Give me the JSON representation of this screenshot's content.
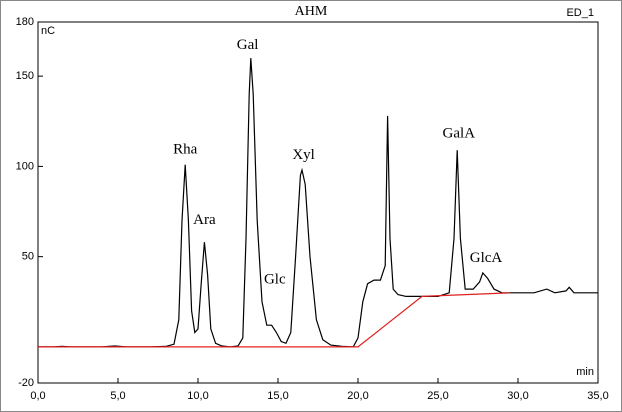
{
  "chart_data": {
    "type": "line",
    "title": "AHM",
    "subtitle": "ED_1",
    "ylabel": "nC",
    "xlabel": "min",
    "xlim": [
      0,
      35
    ],
    "ylim": [
      -20,
      180
    ],
    "xticks": [
      {
        "value": 0,
        "label": "0,0"
      },
      {
        "value": 5,
        "label": "5,0"
      },
      {
        "value": 10,
        "label": "10,0"
      },
      {
        "value": 15,
        "label": "15,0"
      },
      {
        "value": 20,
        "label": "20,0"
      },
      {
        "value": 25,
        "label": "25,0"
      },
      {
        "value": 30,
        "label": "30,0"
      },
      {
        "value": 35,
        "label": "35,0"
      }
    ],
    "yticks": [
      -20,
      50,
      100,
      150,
      180
    ],
    "series": [
      {
        "color": "#000000",
        "x": [
          0.0,
          1.0,
          1.5,
          2.0,
          3.0,
          4.0,
          4.8,
          5.5,
          7.0,
          8.0,
          8.5,
          8.8,
          9.0,
          9.2,
          9.4,
          9.6,
          9.8,
          10.0,
          10.2,
          10.4,
          10.6,
          10.8,
          11.1,
          11.5,
          12.0,
          12.5,
          12.8,
          13.0,
          13.2,
          13.3,
          13.45,
          13.7,
          14.0,
          14.3,
          14.6,
          14.9,
          15.2,
          15.5,
          15.8,
          16.1,
          16.4,
          16.5,
          16.7,
          17.0,
          17.4,
          17.8,
          18.3,
          19.0,
          19.7,
          20.0,
          20.3,
          20.6,
          21.0,
          21.4,
          21.7,
          21.85,
          22.0,
          22.2,
          22.5,
          23.0,
          24.0,
          25.0,
          25.7,
          26.0,
          26.2,
          26.4,
          26.7,
          27.2,
          27.6,
          27.8,
          28.1,
          28.5,
          29.0,
          30.0,
          31.0,
          31.8,
          32.3,
          33.0,
          33.2,
          33.5,
          34.0,
          35.0
        ],
        "values": [
          0,
          0,
          0.3,
          0,
          0,
          0,
          0.5,
          0,
          0,
          0.3,
          1.5,
          15,
          70,
          101,
          70,
          20,
          8,
          10,
          35,
          58,
          40,
          10,
          2,
          0.5,
          0,
          0.5,
          5,
          60,
          140,
          160,
          140,
          70,
          25,
          12,
          12,
          8,
          3,
          2,
          8,
          50,
          95,
          98,
          90,
          50,
          15,
          4,
          1,
          0.3,
          0,
          5,
          25,
          35,
          37,
          37,
          45,
          128,
          60,
          32,
          29,
          28,
          28,
          28,
          30,
          60,
          109,
          60,
          32,
          32,
          36,
          41,
          38,
          32,
          30,
          30,
          30,
          32,
          30,
          31,
          33,
          30,
          30,
          30
        ]
      },
      {
        "color": "#e02020",
        "x": [
          0.0,
          20.0,
          24.0,
          29.5
        ],
        "values": [
          0,
          0,
          28,
          30
        ]
      }
    ],
    "annotations": [
      {
        "text": "Rha",
        "x": 9.2,
        "y": 109
      },
      {
        "text": "Ara",
        "x": 10.4,
        "y": 70
      },
      {
        "text": "Gal",
        "x": 13.1,
        "y": 167
      },
      {
        "text": "Glc",
        "x": 14.8,
        "y": 37
      },
      {
        "text": "Xyl",
        "x": 16.6,
        "y": 106
      },
      {
        "text": "GalA",
        "x": 26.3,
        "y": 118
      },
      {
        "text": "GlcA",
        "x": 28.0,
        "y": 49
      }
    ]
  }
}
